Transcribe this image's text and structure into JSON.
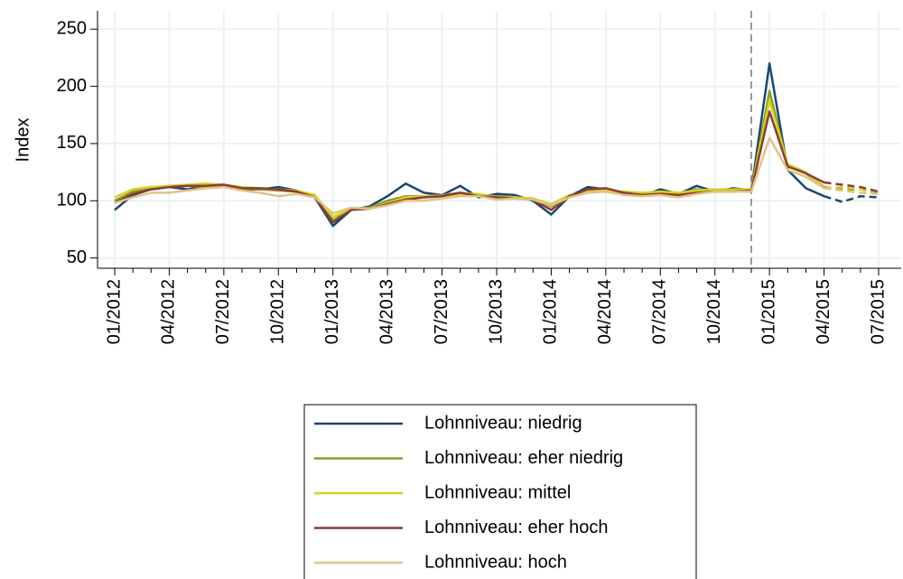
{
  "chart_data": {
    "type": "line",
    "y_label": "Index",
    "categories": [
      "01/2012",
      null,
      null,
      "04/2012",
      null,
      null,
      "07/2012",
      null,
      null,
      "10/2012",
      null,
      null,
      "01/2013",
      null,
      null,
      "04/2013",
      null,
      null,
      "07/2013",
      null,
      null,
      "10/2013",
      null,
      null,
      "01/2014",
      null,
      null,
      "04/2014",
      null,
      null,
      "07/2014",
      null,
      null,
      "10/2014",
      null,
      null,
      "01/2015",
      null,
      null,
      "04/2015",
      null,
      null,
      "07/2015"
    ],
    "ylim": [
      41,
      266
    ],
    "yticks": [
      50,
      100,
      150,
      200,
      250
    ],
    "grid": true,
    "vline_at": 35,
    "forecast_from": 39,
    "series": [
      {
        "name": "Lohnniveau: niedrig",
        "color": "#1a476f",
        "values": [
          92,
          105,
          110,
          112,
          110,
          113,
          114,
          110,
          110,
          112,
          109,
          103,
          78,
          92,
          95,
          104,
          115,
          107,
          105,
          113,
          103,
          106,
          105,
          100,
          88,
          104,
          112,
          110,
          107,
          104,
          110,
          106,
          113,
          108,
          111,
          109,
          220,
          127,
          111,
          104,
          99,
          104,
          103
        ]
      },
      {
        "name": "Lohnniveau: eher niedrig",
        "color": "#8c9a2a",
        "values": [
          100,
          108,
          111,
          112,
          113,
          112,
          114,
          111,
          110,
          109,
          108,
          104,
          83,
          93,
          94,
          100,
          104,
          104,
          105,
          107,
          105,
          104,
          103,
          102,
          95,
          104,
          110,
          110,
          107,
          106,
          107,
          106,
          110,
          109,
          110,
          109,
          196,
          131,
          124,
          112,
          110,
          110,
          107
        ]
      },
      {
        "name": "Lohnniveau: mittel",
        "color": "#d2d41c",
        "values": [
          103,
          110,
          112,
          113,
          114,
          115,
          114,
          112,
          111,
          110,
          109,
          105,
          86,
          93,
          93,
          98,
          103,
          104,
          104,
          106,
          106,
          103,
          103,
          102,
          97,
          105,
          108,
          109,
          108,
          107,
          108,
          107,
          109,
          110,
          110,
          110,
          188,
          132,
          125,
          111,
          112,
          110,
          108
        ]
      },
      {
        "name": "Lohnniveau: eher hoch",
        "color": "#8c3a3a",
        "values": [
          98,
          106,
          110,
          112,
          113,
          113,
          114,
          111,
          111,
          110,
          108,
          103,
          81,
          92,
          93,
          97,
          101,
          103,
          104,
          107,
          104,
          103,
          102,
          101,
          92,
          104,
          110,
          111,
          107,
          105,
          106,
          105,
          107,
          108,
          108,
          109,
          178,
          130,
          124,
          116,
          114,
          112,
          108
        ]
      },
      {
        "name": "Lohnniveau: hoch",
        "color": "#e1c383",
        "values": [
          98,
          103,
          107,
          107,
          109,
          111,
          112,
          109,
          107,
          104,
          106,
          103,
          89,
          94,
          93,
          96,
          100,
          100,
          102,
          104,
          104,
          101,
          102,
          101,
          96,
          103,
          107,
          108,
          105,
          104,
          105,
          103,
          106,
          108,
          108,
          108,
          155,
          127,
          121,
          111,
          109,
          107,
          106
        ]
      }
    ]
  }
}
